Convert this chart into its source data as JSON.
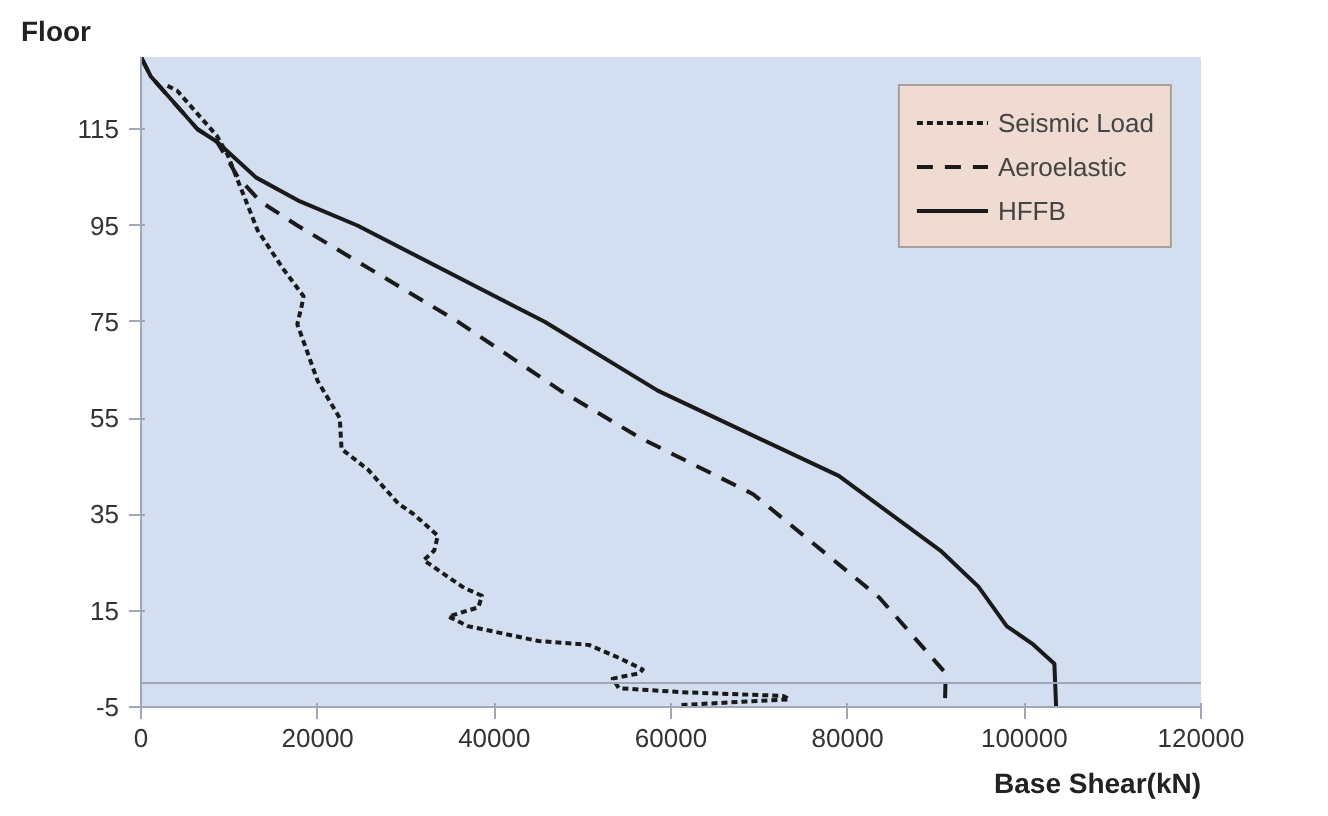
{
  "chart_data": {
    "type": "line",
    "xlabel": "Base Shear(kN)",
    "ylabel": "Floor",
    "xlim": [
      0,
      120000
    ],
    "ylim": [
      -5,
      130
    ],
    "xticks": [
      0,
      20000,
      40000,
      60000,
      80000,
      100000,
      120000
    ],
    "yticks": [
      -5,
      15,
      35,
      55,
      75,
      95,
      115
    ],
    "grid": false,
    "legend": "top right",
    "marker": "none",
    "ref_lines": [
      {
        "axis": "y",
        "value": 0,
        "color": "#a0a8b8"
      }
    ],
    "series": [
      {
        "name": "Seismic Load",
        "color": "#1a1a1a",
        "line_style": "dotted",
        "x": [
          3000,
          4100,
          8600,
          9800,
          13200,
          16100,
          18400,
          18200,
          17700,
          20000,
          22500,
          22700,
          25700,
          29100,
          30900,
          33600,
          33200,
          32000,
          36600,
          38600,
          38200,
          34800,
          37000,
          45000,
          50700,
          54100,
          56800,
          56400,
          53400,
          54100,
          61000,
          72700,
          73400,
          61000
        ],
        "values": [
          124,
          123,
          113.6,
          109.7,
          94,
          86,
          80.3,
          78.4,
          74.5,
          62.7,
          55,
          48.6,
          44.3,
          37.3,
          35,
          30.6,
          27.5,
          25.5,
          19.7,
          18.1,
          15.7,
          13.8,
          11.8,
          8.7,
          7.9,
          5.2,
          2.8,
          2,
          0.9,
          -1.1,
          -1.9,
          -2.7,
          -3.4,
          -4.6
        ]
      },
      {
        "name": "Aeroelastic",
        "color": "#1a1a1a",
        "line_style": "dashed",
        "x": [
          0,
          1100,
          6400,
          8600,
          11000,
          13500,
          17700,
          35900,
          47500,
          56400,
          69300,
          83600,
          91100,
          91000
        ],
        "values": [
          130,
          126,
          115,
          112.4,
          105,
          100,
          95,
          75,
          60.7,
          51,
          39.2,
          17.7,
          2,
          -5
        ]
      },
      {
        "name": "HFFB",
        "color": "#1a1a1a",
        "line_style": "solid",
        "x": [
          0,
          1100,
          6400,
          8600,
          13000,
          18000,
          24500,
          45700,
          58500,
          79000,
          90500,
          94800,
          98000,
          101000,
          103400,
          103600
        ],
        "values": [
          130,
          126,
          115,
          112.4,
          105,
          100,
          95,
          75,
          60.7,
          43,
          27.5,
          20,
          11.8,
          8,
          4,
          -5
        ]
      }
    ]
  }
}
